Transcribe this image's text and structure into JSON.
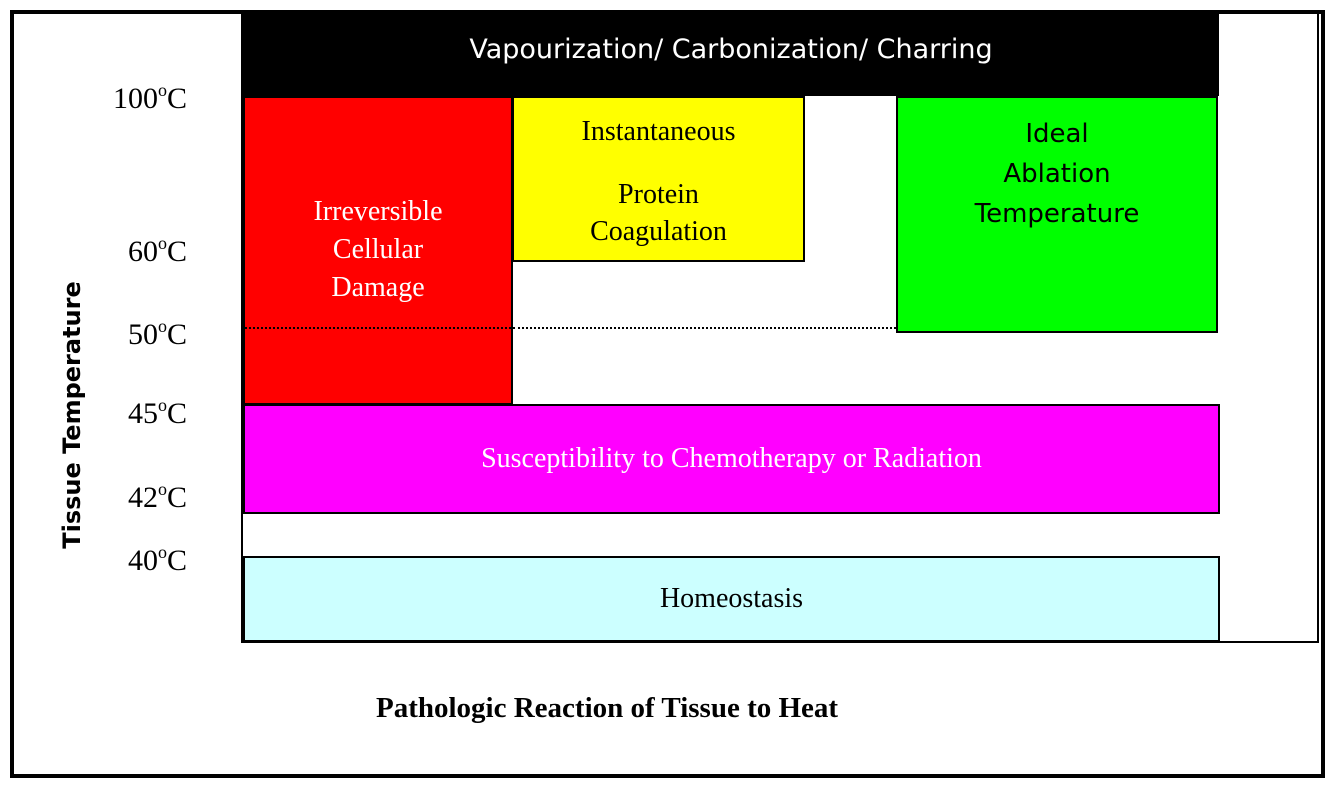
{
  "diagram": {
    "axis_y_label": "Tissue Temperature",
    "axis_x_label": "Pathologic Reaction of Tissue to Heat",
    "temperatures": {
      "t100": {
        "value": "100",
        "unit": "C"
      },
      "t60": {
        "value": "60",
        "unit": "C"
      },
      "t50": {
        "value": "50",
        "unit": "C"
      },
      "t45": {
        "value": "45",
        "unit": "C"
      },
      "t42": {
        "value": "42",
        "unit": "C"
      },
      "t40": {
        "value": "40",
        "unit": "C"
      }
    },
    "degree_symbol": "o",
    "blocks": {
      "vapour": {
        "label": "Vapourization/ Carbonization/ Charring",
        "color": "#000000"
      },
      "irreversible": {
        "line1": "Irreversible",
        "line2": "Cellular",
        "line3": "Damage",
        "color": "#ff0000"
      },
      "instantaneous": {
        "line1": "Instantaneous",
        "line2": "Protein",
        "line3": "Coagulation",
        "color": "#ffff00"
      },
      "ideal": {
        "line1": "Ideal",
        "line2": "Ablation",
        "line3": "Temperature",
        "color": "#00ff00"
      },
      "susceptibility": {
        "label": "Susceptibility to Chemotherapy or Radiation",
        "color": "#ff00ff"
      },
      "homeostasis": {
        "label": "Homeostasis",
        "color": "#ccffff"
      }
    }
  }
}
